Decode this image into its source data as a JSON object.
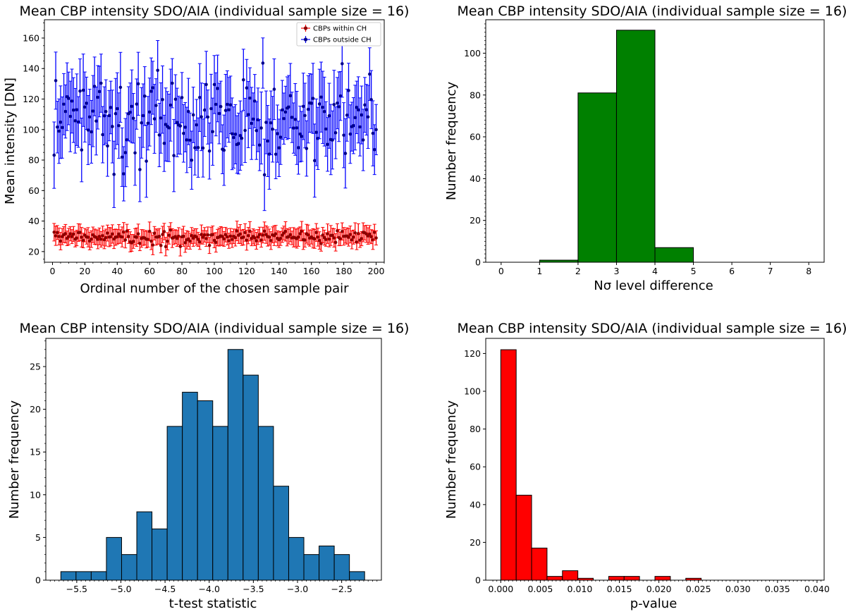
{
  "chart_data": [
    {
      "id": "intensity",
      "type": "scatter",
      "title": "Mean CBP intensity SDO/AIA (individual sample size = 16)",
      "xlabel": "Ordinal number of the chosen sample pair",
      "ylabel": "Mean intensity [DN]",
      "xlim": [
        -5,
        205
      ],
      "ylim": [
        13,
        172
      ],
      "xticks": [
        0,
        20,
        40,
        60,
        80,
        100,
        120,
        140,
        160,
        180,
        200
      ],
      "yticks": [
        20,
        40,
        60,
        80,
        100,
        120,
        140,
        160
      ],
      "n_points": 200,
      "legend_position": "upper right",
      "series": [
        {
          "name": "CBPs within CH",
          "color": "#ff0000",
          "marker_color": "#8b0000",
          "mean": 29.5,
          "spread": 2.2,
          "error": 5.5,
          "seed": 7
        },
        {
          "name": "CBPs outside CH",
          "color": "#0000ff",
          "marker_color": "#00008b",
          "mean": 106,
          "spread": 14,
          "error": 20,
          "seed": 13
        }
      ]
    },
    {
      "id": "nsigma",
      "type": "bar",
      "title": "Mean CBP intensity SDO/AIA (individual sample size = 16)",
      "xlabel": "Nσ level difference",
      "ylabel": "Number frequency",
      "xlim": [
        -0.4,
        8.4
      ],
      "ylim": [
        0,
        116
      ],
      "xticks": [
        0,
        1,
        2,
        3,
        4,
        5,
        6,
        7,
        8
      ],
      "yticks": [
        0,
        20,
        40,
        60,
        80,
        100
      ],
      "bin_edges": [
        0,
        1,
        2,
        3,
        4,
        5,
        6,
        7,
        8
      ],
      "values": [
        0,
        1,
        81,
        111,
        7,
        0,
        0,
        0
      ],
      "color": "#008000"
    },
    {
      "id": "tstat",
      "type": "bar",
      "title": "Mean CBP intensity SDO/AIA (individual sample size = 16)",
      "xlabel": "t-test statistic",
      "ylabel": "Number frequency",
      "xlim": [
        -5.85,
        -2.05
      ],
      "ylim": [
        0,
        28.3
      ],
      "xticks": [
        -5.5,
        -5.0,
        -4.5,
        -4.0,
        -3.5,
        -3.0,
        -2.5
      ],
      "xtick_labels": [
        "−5.5",
        "−5.0",
        "−4.5",
        "−4.0",
        "−3.5",
        "−3.0",
        "−2.5"
      ],
      "yticks": [
        0,
        5,
        10,
        15,
        20,
        25
      ],
      "bin_start": -5.68,
      "bin_width": 0.172,
      "values": [
        1,
        1,
        1,
        5,
        3,
        8,
        6,
        18,
        22,
        21,
        18,
        27,
        24,
        18,
        11,
        5,
        3,
        4,
        3,
        1
      ],
      "color": "#1f77b4"
    },
    {
      "id": "pvalue",
      "type": "bar",
      "title": "Mean CBP intensity SDO/AIA (individual sample size = 16)",
      "xlabel": "p-value",
      "ylabel": "Number frequency",
      "xlim": [
        -0.0019,
        0.0409
      ],
      "ylim": [
        0,
        128
      ],
      "xticks": [
        0.0,
        0.005,
        0.01,
        0.015,
        0.02,
        0.025,
        0.03,
        0.035,
        0.04
      ],
      "xtick_labels": [
        "0.000",
        "0.005",
        "0.010",
        "0.015",
        "0.020",
        "0.025",
        "0.030",
        "0.035",
        "0.040"
      ],
      "yticks": [
        0,
        20,
        40,
        60,
        80,
        100,
        120
      ],
      "bin_start": 0.0,
      "bin_width": 0.00195,
      "values": [
        122,
        45,
        17,
        2,
        5,
        1,
        0,
        2,
        2,
        0,
        2,
        0,
        1,
        0,
        0,
        0,
        0,
        0,
        0,
        0
      ],
      "color": "#ff0000"
    }
  ]
}
